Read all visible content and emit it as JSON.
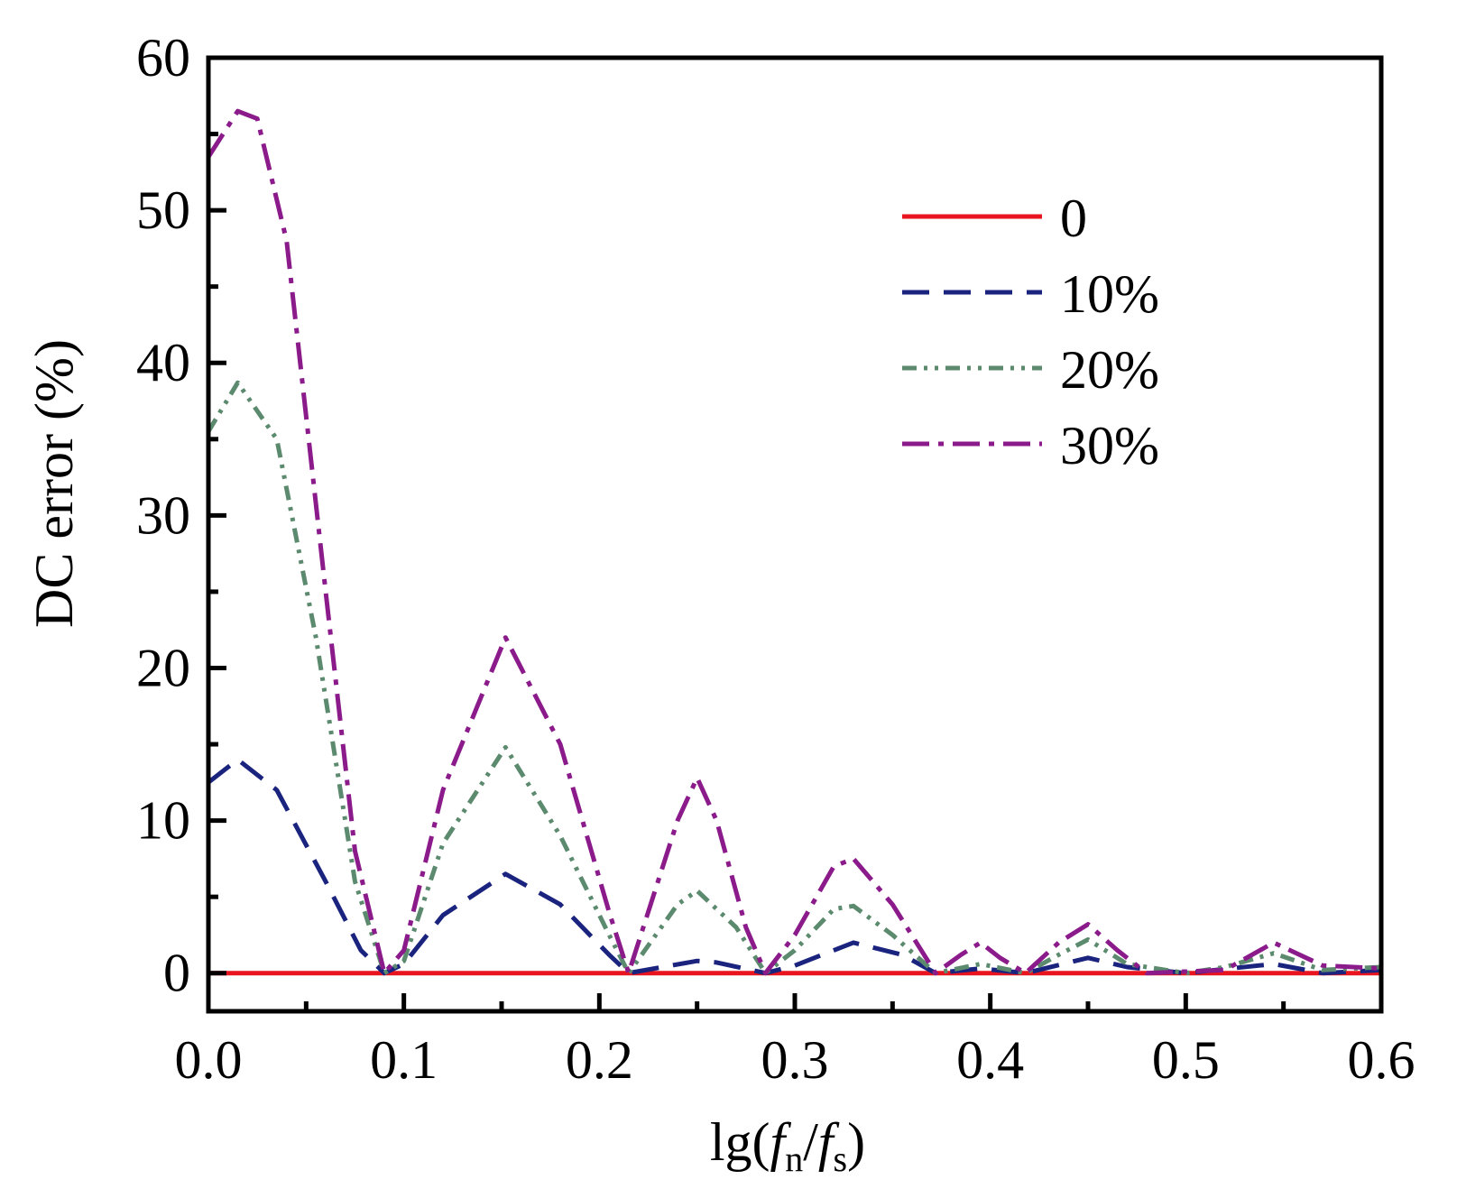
{
  "chart_data": {
    "type": "line",
    "title": "",
    "xlabel": "lg(fn/fs)",
    "xlabel_parts": {
      "prefix": "lg(",
      "f1": "f",
      "sub1": "n",
      "slash": "/",
      "f2": "f",
      "sub2": "s",
      "suffix": ")"
    },
    "ylabel": "DC error (%)",
    "xlim": [
      0,
      0.6
    ],
    "ylim": [
      -2.5,
      60
    ],
    "grid": false,
    "legend_position": "top-right",
    "x_ticks": [
      0,
      0.1,
      0.2,
      0.3,
      0.4,
      0.5,
      0.6
    ],
    "x_tick_labels": [
      "0.0",
      "0.1",
      "0.2",
      "0.3",
      "0.4",
      "0.5",
      "0.6"
    ],
    "y_ticks": [
      0,
      10,
      20,
      30,
      40,
      50,
      60
    ],
    "y_tick_labels": [
      "0",
      "10",
      "20",
      "30",
      "40",
      "50",
      "60"
    ],
    "series": [
      {
        "name": "0",
        "color": "#e8141e",
        "dash": "solid",
        "x": [
          0,
          0.6
        ],
        "y": [
          0,
          0
        ]
      },
      {
        "name": "10%",
        "color": "#1a237e",
        "dash": "dash",
        "x": [
          0,
          0.015,
          0.035,
          0.06,
          0.078,
          0.09,
          0.1,
          0.12,
          0.152,
          0.18,
          0.205,
          0.215,
          0.25,
          0.26,
          0.285,
          0.3,
          0.33,
          0.355,
          0.372,
          0.395,
          0.418,
          0.45,
          0.47,
          0.5,
          0.515,
          0.545,
          0.57,
          0.6
        ],
        "y": [
          12.5,
          14,
          12,
          6,
          1.5,
          0,
          0.6,
          3.8,
          6.5,
          4.5,
          1.2,
          0,
          0.8,
          0.7,
          0,
          0.5,
          2,
          1.2,
          0,
          0.3,
          0,
          1,
          0.4,
          0,
          0.2,
          0.6,
          0,
          0.2
        ]
      },
      {
        "name": "20%",
        "color": "#5c8a6e",
        "dash": "dash-dot-dot",
        "x": [
          0,
          0.015,
          0.035,
          0.055,
          0.075,
          0.09,
          0.1,
          0.12,
          0.152,
          0.18,
          0.205,
          0.215,
          0.24,
          0.25,
          0.27,
          0.285,
          0.3,
          0.32,
          0.33,
          0.35,
          0.372,
          0.395,
          0.418,
          0.435,
          0.45,
          0.47,
          0.5,
          0.52,
          0.545,
          0.57,
          0.6
        ],
        "y": [
          35.5,
          38.7,
          35,
          22,
          6,
          0,
          0.8,
          8.5,
          14.8,
          9,
          2.5,
          0,
          4.5,
          5.4,
          3,
          0,
          1.5,
          4.2,
          4.4,
          2.5,
          0,
          0.6,
          0,
          1.2,
          2.2,
          0.6,
          0,
          0.4,
          1.3,
          0.2,
          0.4
        ]
      },
      {
        "name": "30%",
        "color": "#8b1a8b",
        "dash": "dash-dot",
        "x": [
          0,
          0.015,
          0.025,
          0.04,
          0.06,
          0.075,
          0.09,
          0.1,
          0.12,
          0.152,
          0.18,
          0.205,
          0.215,
          0.24,
          0.25,
          0.26,
          0.275,
          0.285,
          0.3,
          0.32,
          0.33,
          0.35,
          0.372,
          0.385,
          0.395,
          0.405,
          0.418,
          0.435,
          0.45,
          0.465,
          0.48,
          0.52,
          0.545,
          0.57,
          0.6
        ],
        "y": [
          53.5,
          56.5,
          56,
          48,
          25,
          8,
          0,
          1.5,
          12,
          22,
          15,
          4,
          0,
          10,
          12.8,
          10,
          3,
          0,
          2.5,
          7,
          7.5,
          4.5,
          0,
          1.2,
          2,
          1,
          0,
          2,
          3.2,
          1.5,
          0,
          0.2,
          2,
          0.5,
          0.3
        ]
      }
    ]
  }
}
